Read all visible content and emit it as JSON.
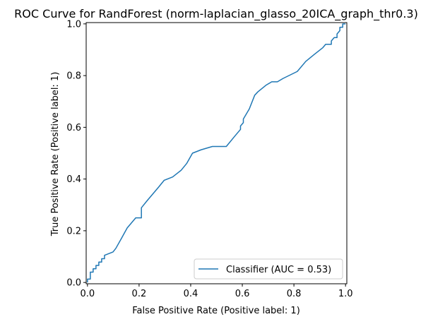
{
  "chart_data": {
    "type": "line",
    "title": "ROC Curve for RandForest (norm-laplacian_glasso_20ICA_graph_thr0.3)",
    "xlabel": "False Positive Rate (Positive label: 1)",
    "ylabel": "True Positive Rate (Positive label: 1)",
    "xlim": [
      0.0,
      1.0
    ],
    "ylim": [
      0.0,
      1.0
    ],
    "x_ticks": [
      "0.0",
      "0.2",
      "0.4",
      "0.6",
      "0.8",
      "1.0"
    ],
    "y_ticks": [
      "0.0",
      "0.2",
      "0.4",
      "0.6",
      "0.8",
      "1.0"
    ],
    "grid": false,
    "legend_position": "lower-right",
    "series": [
      {
        "name": "Classifier (AUC = 0.53)",
        "color": "#1f77b4",
        "x": [
          0.0,
          0.0,
          0.011,
          0.011,
          0.022,
          0.022,
          0.033,
          0.033,
          0.044,
          0.044,
          0.055,
          0.055,
          0.066,
          0.066,
          0.099,
          0.11,
          0.132,
          0.154,
          0.187,
          0.209,
          0.209,
          0.231,
          0.253,
          0.275,
          0.297,
          0.33,
          0.363,
          0.385,
          0.407,
          0.44,
          0.484,
          0.538,
          0.571,
          0.593,
          0.593,
          0.604,
          0.604,
          0.627,
          0.648,
          0.66,
          0.692,
          0.714,
          0.736,
          0.758,
          0.813,
          0.846,
          0.879,
          0.912,
          0.923,
          0.945,
          0.945,
          0.956,
          0.967,
          0.967,
          0.978,
          0.978,
          0.989,
          0.989,
          1.0
        ],
        "y": [
          0.0,
          0.013,
          0.013,
          0.04,
          0.04,
          0.053,
          0.053,
          0.066,
          0.066,
          0.079,
          0.079,
          0.092,
          0.092,
          0.105,
          0.118,
          0.132,
          0.171,
          0.211,
          0.25,
          0.25,
          0.289,
          0.316,
          0.342,
          0.368,
          0.395,
          0.408,
          0.434,
          0.461,
          0.5,
          0.513,
          0.526,
          0.526,
          0.566,
          0.592,
          0.605,
          0.618,
          0.632,
          0.671,
          0.724,
          0.737,
          0.763,
          0.776,
          0.776,
          0.789,
          0.816,
          0.855,
          0.882,
          0.908,
          0.921,
          0.921,
          0.934,
          0.947,
          0.947,
          0.961,
          0.974,
          0.987,
          0.987,
          1.0,
          1.0
        ]
      }
    ]
  }
}
